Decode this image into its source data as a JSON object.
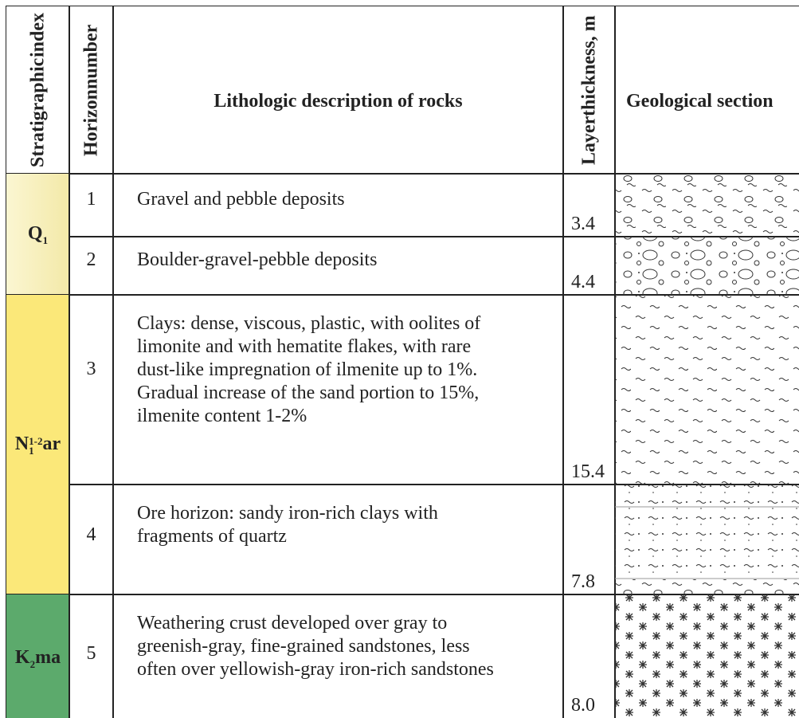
{
  "header": {
    "columns": [
      {
        "lines": [
          "Stratigraphic",
          "index"
        ]
      },
      {
        "lines": [
          "Horizon",
          "number"
        ]
      },
      {
        "lines": [
          "Lithologic description of rocks"
        ]
      },
      {
        "lines": [
          "Layer",
          "thickness, m"
        ]
      },
      {
        "lines": [
          "Geological section"
        ]
      }
    ]
  },
  "groups": [
    {
      "index": {
        "text": "Q",
        "sub": "1"
      }
    },
    {
      "index": {
        "text": "N",
        "sub": "1",
        "sup": "1-2",
        "suffix": "ar"
      }
    },
    {
      "index": {
        "text": "K",
        "sub": "2",
        "suffix": "ma"
      }
    }
  ],
  "rows": [
    {
      "horizon": "1",
      "description": [
        "Gravel and pebble deposits"
      ],
      "thickness": "3.4"
    },
    {
      "horizon": "2",
      "description": [
        "Boulder-gravel-pebble deposits"
      ],
      "thickness": "4.4"
    },
    {
      "horizon": "3",
      "description": [
        "Clays: dense, viscous, plastic, with oolites of",
        "limonite and with hematite flakes, with  rare",
        "dust-like impregnation of ilmenite up to 1%.",
        "Gradual increase of the sand portion to 15%,",
        "ilmenite content 1-2%"
      ],
      "thickness": "15.4"
    },
    {
      "horizon": "4",
      "description": [
        "Ore horizon: sandy iron-rich clays with",
        "fragments of quartz"
      ],
      "thickness": "7.8"
    },
    {
      "horizon": "5",
      "description": [
        "Weathering crust developed over gray to",
        "greenish-gray, fine-grained sandstones, less",
        "often over yellowish-gray iron-rich sandstones"
      ],
      "thickness": "8.0"
    }
  ]
}
